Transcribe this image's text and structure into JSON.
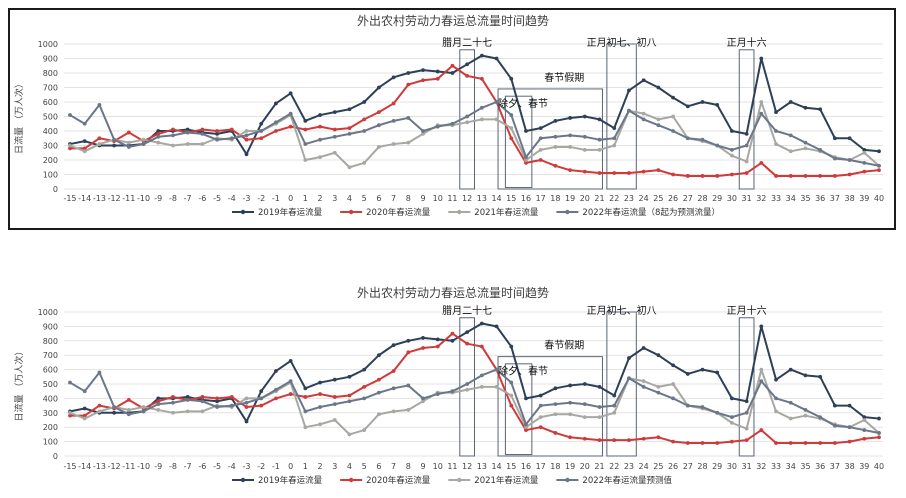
{
  "charts": [
    {
      "title": "外出农村劳动力春运总流量时间趋势",
      "ylabel": "日流量 （万人次）",
      "annotations": {
        "la27": "腊月二十七",
        "chuxi": "除夕、春节",
        "holiday": "春节假期",
        "c78": "正月初七、初八",
        "c16": "正月十六"
      },
      "legend": [
        "2019年春运流量",
        "2020年春运流量",
        "2021年春运流量",
        "2022年春运流量（8起为预测流量）"
      ]
    },
    {
      "title": "外出农村劳动力春运总流量时间趋势",
      "ylabel": "日流量 （万人次）",
      "annotations": {
        "la27": "腊月二十七",
        "chuxi": "除夕、春节",
        "holiday": "春节假期",
        "c78": "正月初七、初八",
        "c16": "正月十六"
      },
      "legend": [
        "2019年春运流量",
        "2020年春运流量",
        "2021年春运流量",
        "2022年春运流量预测值"
      ]
    }
  ],
  "chart_data": {
    "type": "line",
    "x": [
      -15,
      -14,
      -13,
      -12,
      -11,
      -10,
      -9,
      -8,
      -7,
      -6,
      -5,
      -4,
      -3,
      -2,
      -1,
      0,
      1,
      2,
      3,
      4,
      5,
      6,
      7,
      8,
      9,
      10,
      11,
      12,
      13,
      14,
      15,
      16,
      17,
      18,
      19,
      20,
      21,
      22,
      23,
      24,
      25,
      26,
      27,
      28,
      29,
      30,
      31,
      32,
      33,
      34,
      35,
      36,
      37,
      38,
      39,
      40
    ],
    "xticks": [
      "-15",
      "-14",
      "-13",
      "-12",
      "-11",
      "-10",
      "-9",
      "-8",
      "-7",
      "-6",
      "-5",
      "-4",
      "-3",
      "-2",
      "-1",
      "0",
      "1",
      "2",
      "3",
      "4",
      "5",
      "6",
      "7",
      "8",
      "9",
      "10",
      "11",
      "12",
      "13",
      "14",
      "15",
      "16",
      "17",
      "18",
      "19",
      "20",
      "21",
      "22",
      "23",
      "24",
      "25",
      "26",
      "27",
      "28",
      "29",
      "30",
      "31",
      "32",
      "33",
      "34",
      "35",
      "36",
      "37",
      "38",
      "39",
      "40"
    ],
    "yticks": [
      "0",
      "100",
      "200",
      "300",
      "400",
      "500",
      "600",
      "700",
      "800",
      "900",
      "1000"
    ],
    "ylim": [
      0,
      1000
    ],
    "series": [
      {
        "name": "2019年春运流量",
        "color": "#2e4057",
        "values": [
          310,
          330,
          300,
          300,
          300,
          310,
          400,
          400,
          410,
          390,
          380,
          400,
          240,
          450,
          590,
          660,
          470,
          510,
          530,
          550,
          600,
          700,
          770,
          800,
          820,
          810,
          800,
          860,
          920,
          900,
          760,
          400,
          420,
          470,
          490,
          500,
          480,
          420,
          680,
          750,
          700,
          630,
          570,
          600,
          580,
          400,
          380,
          900,
          530,
          600,
          560,
          550,
          350,
          350,
          270,
          260
        ]
      },
      {
        "name": "2020年春运流量",
        "color": "#cf3a3a",
        "values": [
          280,
          280,
          350,
          330,
          390,
          330,
          380,
          410,
          390,
          410,
          400,
          410,
          340,
          350,
          400,
          430,
          410,
          430,
          410,
          420,
          480,
          530,
          590,
          720,
          750,
          760,
          850,
          780,
          760,
          600,
          350,
          180,
          200,
          160,
          130,
          120,
          110,
          110,
          110,
          120,
          130,
          100,
          90,
          90,
          90,
          100,
          110,
          180,
          90,
          90,
          90,
          90,
          90,
          100,
          120,
          130
        ]
      },
      {
        "name": "2021年春运流量",
        "color": "#a8a8a2",
        "values": [
          300,
          260,
          310,
          340,
          320,
          340,
          320,
          300,
          310,
          310,
          350,
          340,
          400,
          400,
          450,
          510,
          200,
          220,
          250,
          150,
          180,
          290,
          310,
          320,
          380,
          440,
          440,
          460,
          480,
          480,
          420,
          200,
          270,
          290,
          290,
          270,
          270,
          300,
          540,
          520,
          480,
          500,
          350,
          330,
          300,
          230,
          190,
          600,
          310,
          260,
          280,
          260,
          220,
          200,
          250,
          160
        ]
      },
      {
        "name": "2022年春运流量",
        "color": "#6b7689",
        "values": [
          510,
          450,
          580,
          340,
          290,
          310,
          360,
          370,
          390,
          380,
          340,
          350,
          370,
          400,
          460,
          520,
          310,
          340,
          360,
          380,
          400,
          440,
          470,
          490,
          400,
          430,
          450,
          500,
          560,
          600,
          510,
          220,
          350,
          360,
          370,
          360,
          340,
          350,
          540,
          480,
          440,
          400,
          350,
          340,
          300,
          270,
          300,
          520,
          400,
          370,
          320,
          270,
          210,
          200,
          180,
          160
        ]
      }
    ]
  }
}
